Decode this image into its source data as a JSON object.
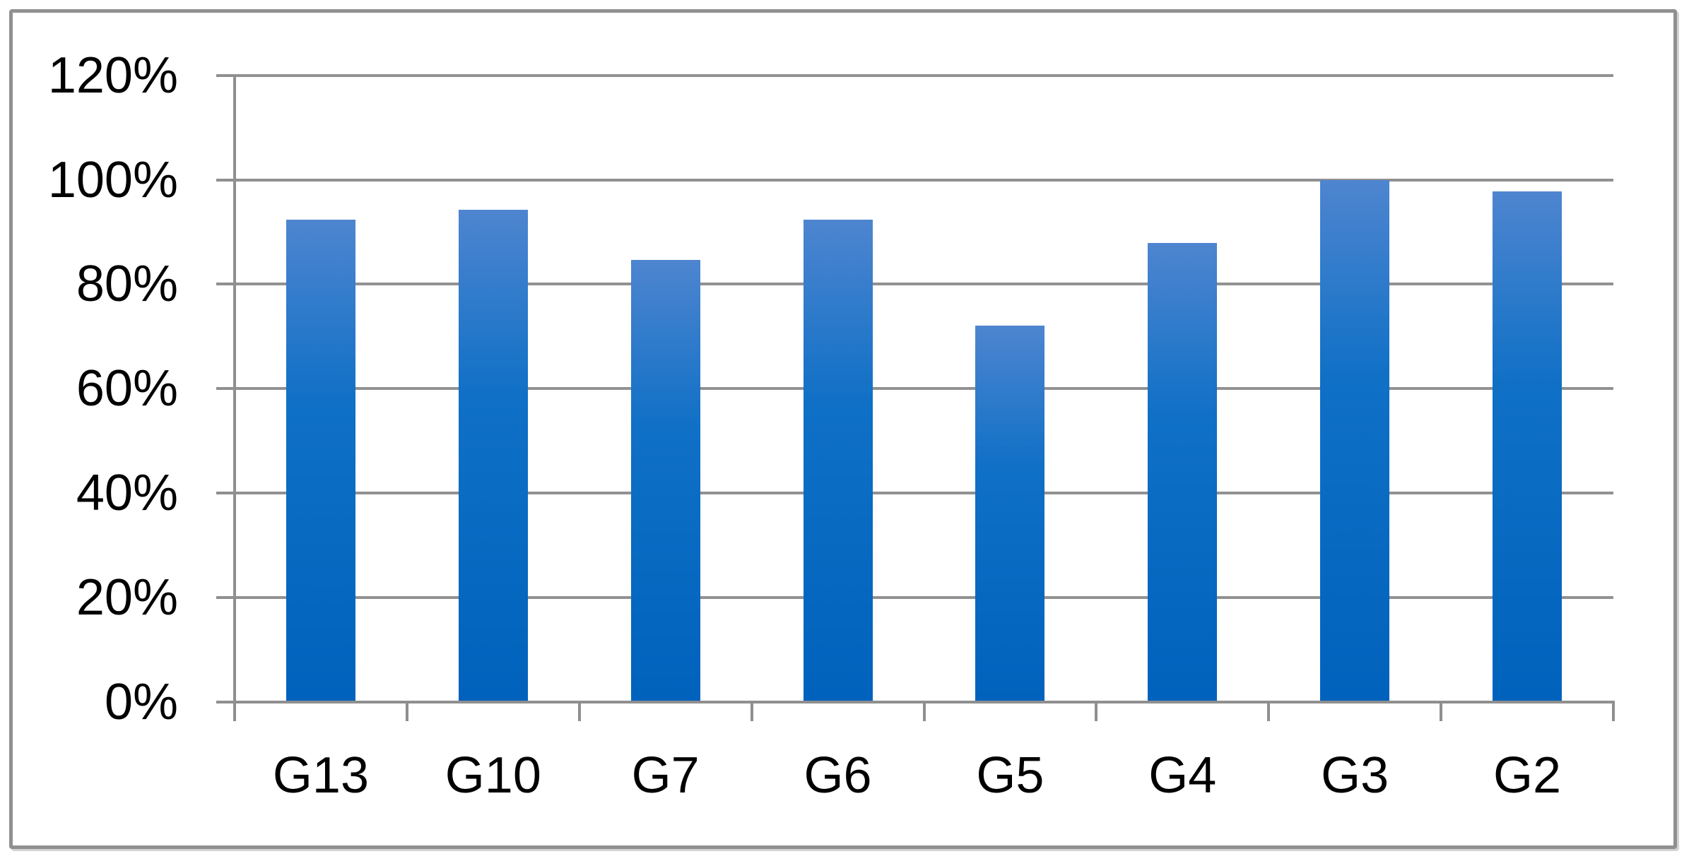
{
  "chart_data": {
    "type": "bar",
    "title": "",
    "xlabel": "",
    "ylabel": "",
    "categories": [
      "G13",
      "G10",
      "G7",
      "G6",
      "G5",
      "G4",
      "G3",
      "G2"
    ],
    "values": [
      92.3,
      94.3,
      84.7,
      92.4,
      72.1,
      87.9,
      100,
      97.8
    ],
    "unit": "%",
    "ylim": [
      0,
      120
    ],
    "ytick_step": 20,
    "ytick_labels": [
      "0%",
      "20%",
      "40%",
      "60%",
      "80%",
      "100%",
      "120%"
    ],
    "grid": true,
    "legend": false,
    "colors": {
      "bar_top": "#4E85D0",
      "bar_mid": "#0F70C6",
      "bar_bottom": "#0062BC",
      "gridline": "#919191",
      "axis": "#8F8F8F",
      "border": "#909090",
      "text": "#000000",
      "background": "#FFFFFF"
    }
  }
}
